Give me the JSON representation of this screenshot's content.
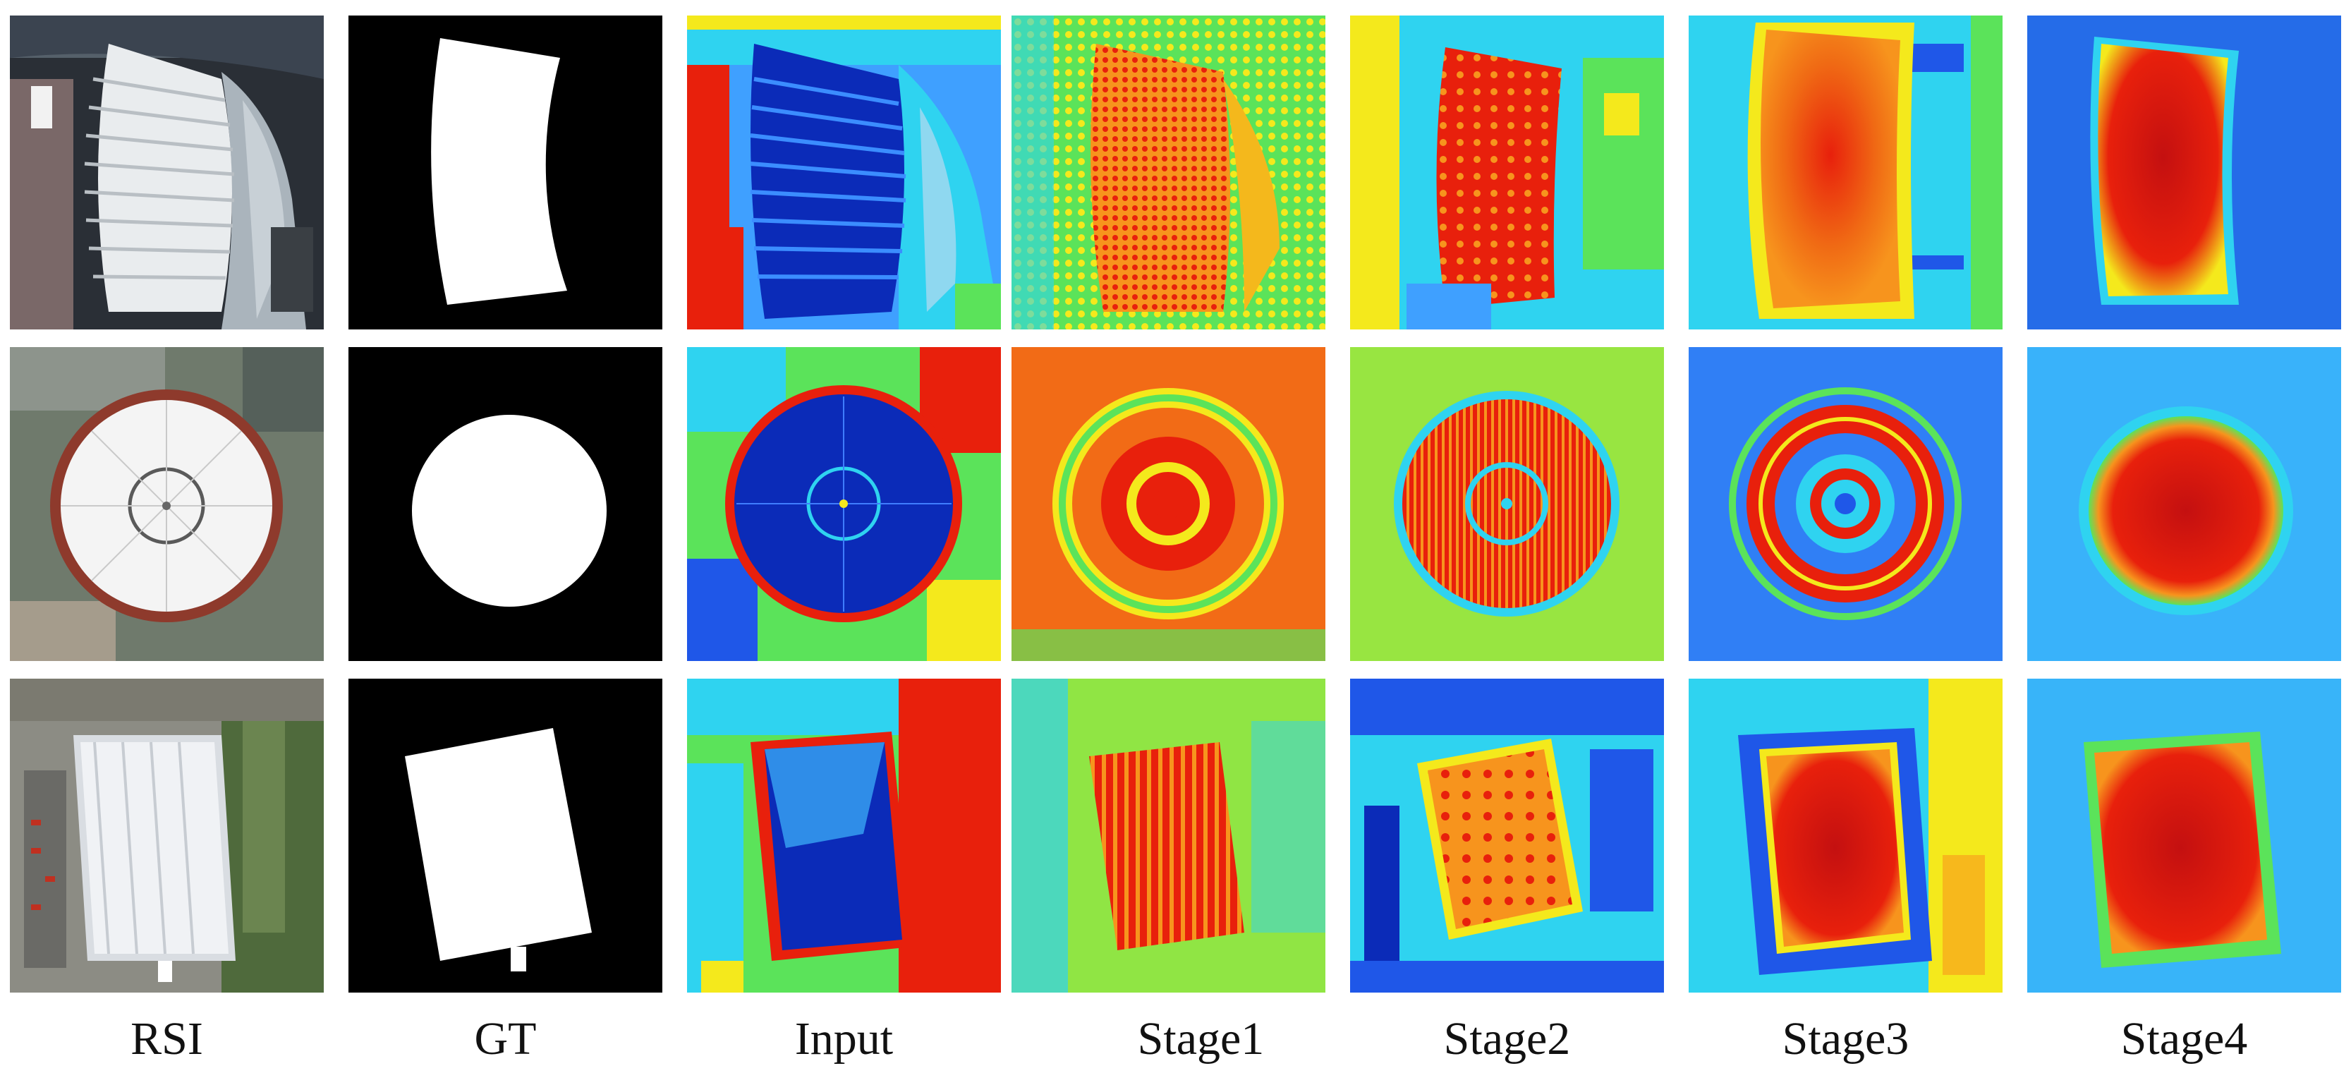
{
  "figure": {
    "columns": [
      {
        "key": "rsi",
        "label": "RSI",
        "kind": "satellite photo"
      },
      {
        "key": "gt",
        "label": "GT",
        "kind": "binary mask"
      },
      {
        "key": "input",
        "label": "Input",
        "kind": "jet heatmap"
      },
      {
        "key": "stage1",
        "label": "Stage1",
        "kind": "jet heatmap"
      },
      {
        "key": "stage2",
        "label": "Stage2",
        "kind": "jet heatmap"
      },
      {
        "key": "stage3",
        "label": "Stage3",
        "kind": "jet heatmap"
      },
      {
        "key": "stage4",
        "label": "Stage4",
        "kind": "jet heatmap"
      }
    ],
    "rows": [
      {
        "subject": "curved-roof-stadium"
      },
      {
        "subject": "circular-dome-stadium"
      },
      {
        "subject": "rectangular-inflated-hall"
      }
    ],
    "colors": {
      "jet_red": "#e8200c",
      "jet_orange": "#f7941d",
      "jet_yellow": "#f4e91c",
      "jet_green": "#5be35a",
      "jet_cyan": "#2fd3f0",
      "jet_blue": "#1f57e8",
      "jet_navy": "#0b1f8f",
      "mask_fg": "#ffffff",
      "mask_bg": "#000000"
    }
  }
}
